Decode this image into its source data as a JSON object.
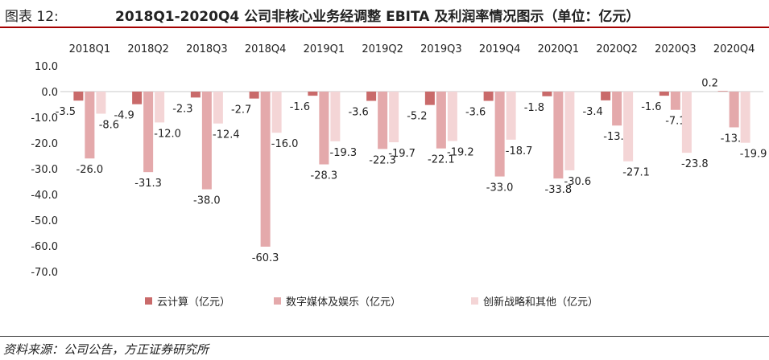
{
  "figure": {
    "label": "图表 12:",
    "title": "2018Q1-2020Q4 公司非核心业务经调整 EBITA 及利润率情况图示（单位：亿元）",
    "source": "资料来源：公司公告，方正证券研究所"
  },
  "chart_data": {
    "type": "bar",
    "categories": [
      "2018Q1",
      "2018Q2",
      "2018Q3",
      "2018Q4",
      "2019Q1",
      "2019Q2",
      "2019Q3",
      "2019Q4",
      "2020Q1",
      "2020Q2",
      "2020Q3",
      "2020Q4"
    ],
    "series": [
      {
        "name": "云计算（亿元）",
        "color": "#c96a6a",
        "values": [
          -3.5,
          -4.9,
          -2.3,
          -2.7,
          -1.6,
          -3.6,
          -5.2,
          -3.6,
          -1.8,
          -3.4,
          -1.6,
          0.2
        ]
      },
      {
        "name": "数字媒体及娱乐（亿元）",
        "color": "#e4a9ab",
        "values": [
          -26.0,
          -31.3,
          -38.0,
          -60.3,
          -28.3,
          -22.3,
          -22.1,
          -33.0,
          -33.8,
          -13.2,
          -7.1,
          -13.9
        ]
      },
      {
        "name": "创新战略和其他（亿元）",
        "color": "#f4d5d6",
        "values": [
          -8.6,
          -12.0,
          -12.4,
          -16.0,
          -19.3,
          -19.7,
          -19.2,
          -18.7,
          -30.6,
          -27.1,
          -23.8,
          -19.9
        ]
      }
    ],
    "yticks": [
      10.0,
      0.0,
      -10.0,
      -20.0,
      -30.0,
      -40.0,
      -50.0,
      -60.0,
      -70.0
    ],
    "ytick_labels": [
      "10.0",
      "0.0",
      "-10.0",
      "-20.0",
      "-30.0",
      "-40.0",
      "-50.0",
      "-60.0",
      "-70.0"
    ],
    "ylim": [
      -70,
      10
    ],
    "xaxis_position": "top",
    "legend_position": "bottom",
    "grid": false
  }
}
